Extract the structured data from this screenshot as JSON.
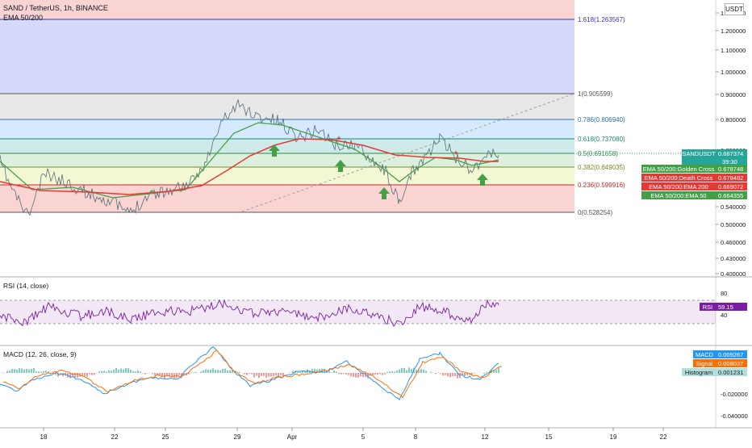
{
  "header": {
    "symbol_line": "SAND / TetherUS, 1h, BINANCE",
    "indicator_line": "EMA 50/200",
    "currency_button": "USDT"
  },
  "main_axis": {
    "ticks": [
      "1.300000",
      "1.200000",
      "1.100000",
      "1.000000",
      "0.900000",
      "0.800000",
      "0.700000",
      "0.600000",
      "0.540000",
      "0.500000",
      "0.460000",
      "0.430000",
      "0.400000"
    ]
  },
  "fib_levels": [
    {
      "label": "1.618(1.263567)",
      "color": "#3b2fb8"
    },
    {
      "label": "1(0.905599)",
      "color": "#555555"
    },
    {
      "label": "0.786(0.806940)",
      "color": "#2a70b0"
    },
    {
      "label": "0.618(0.737080)",
      "color": "#188a76"
    },
    {
      "label": "0.5(0.691658)",
      "color": "#2e8b3e"
    },
    {
      "label": "0.382(0.649035)",
      "color": "#6b8e23"
    },
    {
      "label": "0.236(0.599916)",
      "color": "#c62828"
    },
    {
      "label": "0(0.528254)",
      "color": "#555555"
    }
  ],
  "price_badges": [
    {
      "label": "SANDUSDT",
      "value": "0.687374",
      "sub": "39:30",
      "bg": "#26a69a"
    },
    {
      "label": "EMA 50/200:Golden Cross",
      "value": "0.678748",
      "bg": "#43a047"
    },
    {
      "label": "EMA 50/200:Death Cross",
      "value": "0.678482",
      "bg": "#e53935"
    },
    {
      "label": "EMA 50/200:EMA 200",
      "value": "0.669072",
      "bg": "#e53935"
    },
    {
      "label": "EMA 50/200:EMA 50",
      "value": "0.664355",
      "bg": "#43a047"
    }
  ],
  "rsi": {
    "title": "RSI (14, close)",
    "ticks": [
      "80",
      "40"
    ],
    "badge_label": "RSI",
    "badge_value": "59.15",
    "color": "#7b1fa2"
  },
  "macd": {
    "title": "MACD (12, 26, close, 9)",
    "ticks": [
      "-0.020000",
      "-0.040000"
    ],
    "badges": [
      {
        "label": "MACD",
        "value": "0.009267",
        "bg": "#2196f3"
      },
      {
        "label": "Signal",
        "value": "0.008037",
        "bg": "#ff6d00"
      },
      {
        "label": "Histogram",
        "value": "0.001231",
        "bg": "#b2dfdb"
      }
    ]
  },
  "time_axis": {
    "labels": [
      "18",
      "22",
      "25",
      "29",
      "Apr",
      "5",
      "8",
      "12",
      "15",
      "19",
      "22"
    ]
  },
  "chart_data": {
    "type": "line",
    "title": "SAND / TetherUS, 1h, BINANCE",
    "x": [
      "18",
      "22",
      "25",
      "29",
      "Apr",
      "5",
      "8",
      "12"
    ],
    "series": [
      {
        "name": "SANDUSDT",
        "values": [
          0.55,
          0.56,
          0.6,
          0.8,
          0.72,
          0.64,
          0.58,
          0.687
        ]
      },
      {
        "name": "EMA 50",
        "values": [
          0.58,
          0.57,
          0.6,
          0.75,
          0.72,
          0.67,
          0.64,
          0.664
        ]
      },
      {
        "name": "EMA 200",
        "values": [
          0.6,
          0.59,
          0.59,
          0.66,
          0.7,
          0.69,
          0.67,
          0.669
        ]
      }
    ],
    "rsi_current": 59.15,
    "macd_current": {
      "MACD": 0.009267,
      "Signal": 0.008037,
      "Histogram": 0.001231
    },
    "golden_cross_markers": 5,
    "ylim": [
      0.4,
      1.3
    ],
    "log_scale": true
  }
}
